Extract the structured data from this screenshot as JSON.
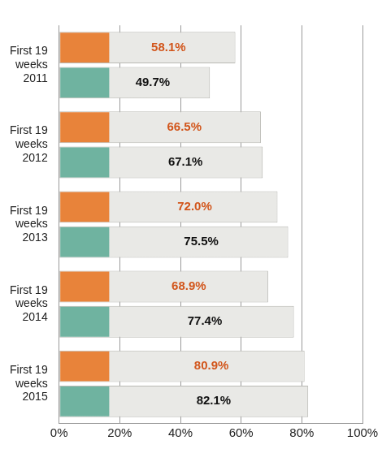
{
  "chart_data": {
    "type": "bar",
    "orientation": "horizontal",
    "categories": [
      "First 19 weeks 2011",
      "First 19 weeks 2012",
      "First 19 weeks 2013",
      "First 19 weeks 2014",
      "First 19 weeks 2015"
    ],
    "series": [
      {
        "color": "#e8833a",
        "values": [
          58.1,
          66.5,
          72.0,
          68.9,
          80.9
        ],
        "value_labels": [
          "58.1%",
          "66.5%",
          "72.0%",
          "68.9%",
          "80.9%"
        ]
      },
      {
        "color": "#6fb3a0",
        "values": [
          49.7,
          67.1,
          75.5,
          77.4,
          82.1
        ],
        "value_labels": [
          "49.7%",
          "67.1%",
          "75.5%",
          "77.4%",
          "82.1%"
        ]
      }
    ],
    "xlim": [
      0,
      100
    ],
    "xticks": [
      {
        "value": 0,
        "label": "0%"
      },
      {
        "value": 20,
        "label": "20%"
      },
      {
        "value": 40,
        "label": "40%"
      },
      {
        "value": 60,
        "label": "60%"
      },
      {
        "value": 80,
        "label": "80%"
      },
      {
        "value": 100,
        "label": "100%"
      }
    ],
    "grid": true,
    "data_labels": true
  }
}
